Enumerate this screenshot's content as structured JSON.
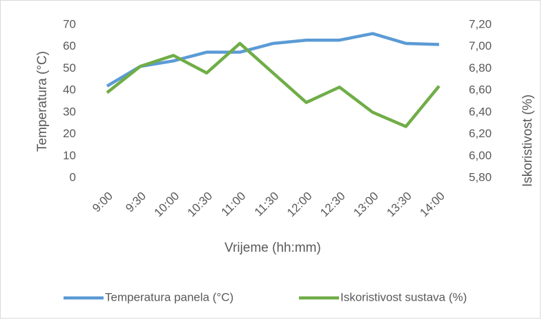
{
  "chart_data": {
    "type": "line",
    "x_label": "Vrijeme (hh:mm)",
    "y_label": "Temperatura (°C)",
    "y2_label": "Iskoristivost (%)",
    "categories": [
      "9:00",
      "9:30",
      "10:00",
      "10:30",
      "11:00",
      "11:30",
      "12:00",
      "12:30",
      "13:00",
      "13:30",
      "14:00"
    ],
    "series": [
      {
        "name": "Temperatura panela (°C)",
        "color": "#5b9bd5",
        "values": [
          42,
          51,
          53.5,
          57.5,
          57.5,
          61.5,
          63,
          63,
          66,
          61.5,
          61
        ]
      },
      {
        "name": "Iskoristivost sustava (%)",
        "color": "#70ad47",
        "axis": "y2",
        "values": [
          6.58,
          6.82,
          6.92,
          6.76,
          7.03,
          6.76,
          6.49,
          6.63,
          6.4,
          6.27,
          6.64
        ]
      }
    ],
    "ylim": [
      0,
      70
    ],
    "yticks": [
      0,
      10,
      20,
      30,
      40,
      50,
      60,
      70
    ],
    "y2lim": [
      5.8,
      7.2
    ],
    "y2ticks": [
      {
        "value": 5.8,
        "label": "5,80"
      },
      {
        "value": 6.0,
        "label": "6,00"
      },
      {
        "value": 6.2,
        "label": "6,20"
      },
      {
        "value": 6.4,
        "label": "6,40"
      },
      {
        "value": 6.6,
        "label": "6,60"
      },
      {
        "value": 6.8,
        "label": "6,80"
      },
      {
        "value": 7.0,
        "label": "7,00"
      },
      {
        "value": 7.2,
        "label": "7,20"
      }
    ],
    "grid": false,
    "legend": "bottom"
  }
}
